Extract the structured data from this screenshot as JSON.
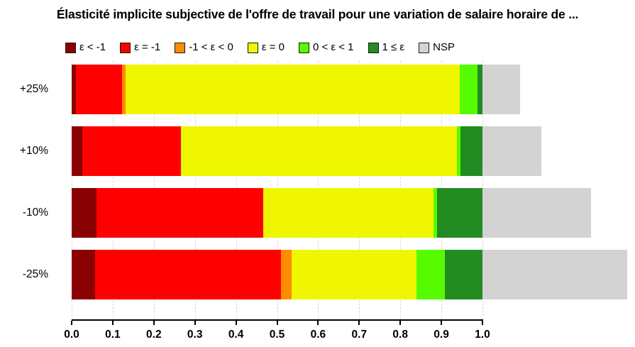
{
  "title": "Élasticité implicite subjective de l'offre de travail pour une variation de salaire horaire de ...",
  "chart_data": {
    "type": "bar",
    "orientation": "horizontal-stacked",
    "title": "Élasticité implicite subjective de l'offre de travail pour une variation de salaire horaire de ...",
    "categories": [
      "+25%",
      "+10%",
      "-10%",
      "-25%"
    ],
    "series": [
      {
        "name": "ε < -1",
        "color": "#8B0000",
        "values": [
          0.011,
          0.026,
          0.061,
          0.057
        ]
      },
      {
        "name": "ε = -1",
        "color": "#FF0000",
        "values": [
          0.111,
          0.24,
          0.406,
          0.452
        ]
      },
      {
        "name": "-1 < ε < 0",
        "color": "#FF8C00",
        "values": [
          0.01,
          0.0,
          0.0,
          0.027
        ]
      },
      {
        "name": "ε = 0",
        "color": "#F0F500",
        "values": [
          0.812,
          0.672,
          0.414,
          0.304
        ]
      },
      {
        "name": "0 < ε < 1",
        "color": "#57FB00",
        "values": [
          0.044,
          0.008,
          0.008,
          0.069
        ]
      },
      {
        "name": "1 ≤ ε",
        "color": "#228B22",
        "values": [
          0.012,
          0.054,
          0.111,
          0.091
        ]
      },
      {
        "name": "NSP",
        "color": "#D3D3D3",
        "values": [
          0.091,
          0.143,
          0.265,
          0.352
        ]
      }
    ],
    "answered_series_sum_to": 1.0,
    "nsp_stacks_beyond_xlim": true,
    "xlim": [
      0.0,
      1.0
    ],
    "xticks": [
      "0.0",
      "0.1",
      "0.2",
      "0.3",
      "0.4",
      "0.5",
      "0.6",
      "0.7",
      "0.8",
      "0.9",
      "1.0"
    ],
    "grid": "dashed-vertical",
    "legend_position": "top",
    "axis_color": "#000000",
    "gridline_color": "#D8D8D8"
  }
}
